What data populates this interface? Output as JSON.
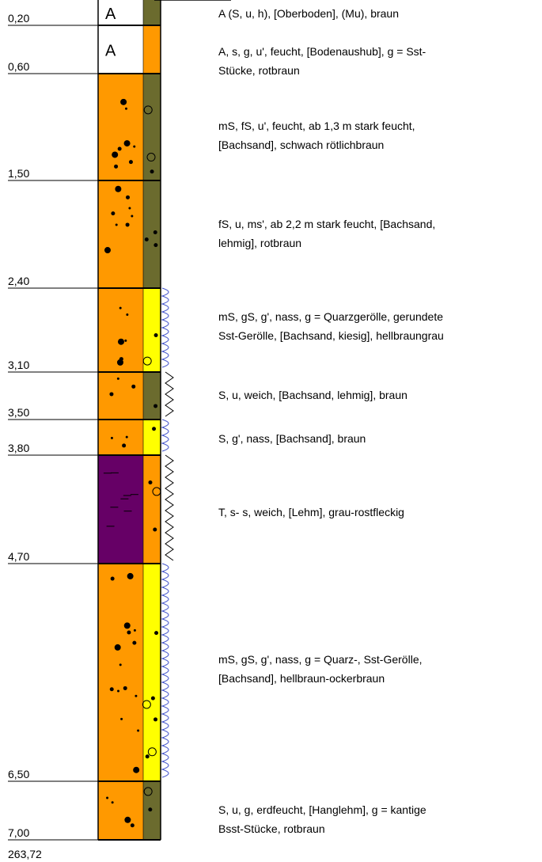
{
  "depths": [
    "0,20",
    "0,60",
    "1,50",
    "2,40",
    "3,10",
    "3,50",
    "3,80",
    "4,70",
    "6,50",
    "7,00"
  ],
  "bottom_elevation": "263,72",
  "layers": [
    {
      "top": 0.0,
      "bottom": 0.2,
      "main_color": "#ffffff",
      "side_color": "#6b6b2e",
      "water": "",
      "label_letter": "A",
      "desc_lines": [
        "A (S, u, h), [Oberboden], (Mu), braun"
      ]
    },
    {
      "top": 0.2,
      "bottom": 0.6,
      "main_color": "#ffffff",
      "side_color": "#ff9900",
      "water": "",
      "label_letter": "A",
      "desc_lines": [
        "A, s, g, u', feucht, [Bodenaushub], g = Sst-",
        "Stücke, rotbraun"
      ]
    },
    {
      "top": 0.6,
      "bottom": 1.5,
      "main_color": "#ff9900",
      "side_color": "#6b6b2e",
      "water": "",
      "desc_lines": [
        "mS, fS, u', feucht, ab 1,3 m stark feucht,",
        "[Bachsand], schwach rötlichbraun"
      ]
    },
    {
      "top": 1.5,
      "bottom": 2.4,
      "main_color": "#ff9900",
      "side_color": "#6b6b2e",
      "water": "",
      "desc_lines": [
        "fS, u, ms', ab 2,2 m stark feucht, [Bachsand,",
        "lehmig], rotbraun"
      ]
    },
    {
      "top": 2.4,
      "bottom": 3.1,
      "main_color": "#ff9900",
      "side_color": "#ffff00",
      "water": "wave",
      "desc_lines": [
        "mS, gS, g', nass, g = Quarzgerölle, gerundete",
        "Sst-Gerölle, [Bachsand, kiesig], hellbraungrau"
      ]
    },
    {
      "top": 3.1,
      "bottom": 3.5,
      "main_color": "#ff9900",
      "side_color": "#6b6b2e",
      "water": "zigzag",
      "desc_lines": [
        "S, u, weich, [Bachsand, lehmig], braun"
      ]
    },
    {
      "top": 3.5,
      "bottom": 3.8,
      "main_color": "#ff9900",
      "side_color": "#ffff00",
      "water": "wave",
      "desc_lines": [
        "S, g', nass, [Bachsand], braun"
      ]
    },
    {
      "top": 3.8,
      "bottom": 4.7,
      "main_color": "#660066",
      "side_color": "#ff9900",
      "water": "zigzag",
      "desc_lines": [
        "T, s- s, weich, [Lehm], grau-rostfleckig"
      ]
    },
    {
      "top": 4.7,
      "bottom": 6.5,
      "main_color": "#ff9900",
      "side_color": "#ffff00",
      "water": "wave",
      "desc_lines": [
        "mS, gS, g', nass, g = Quarz-, Sst-Gerölle,",
        "[Bachsand], hellbraun-ockerbraun"
      ]
    },
    {
      "top": 6.5,
      "bottom": 7.0,
      "main_color": "#ff9900",
      "side_color": "#6b6b2e",
      "water": "",
      "desc_lines": [
        "S, u, g, erdfeucht, [Hanglehm], g = kantige",
        "Bsst-Stücke, rotbraun"
      ]
    }
  ]
}
